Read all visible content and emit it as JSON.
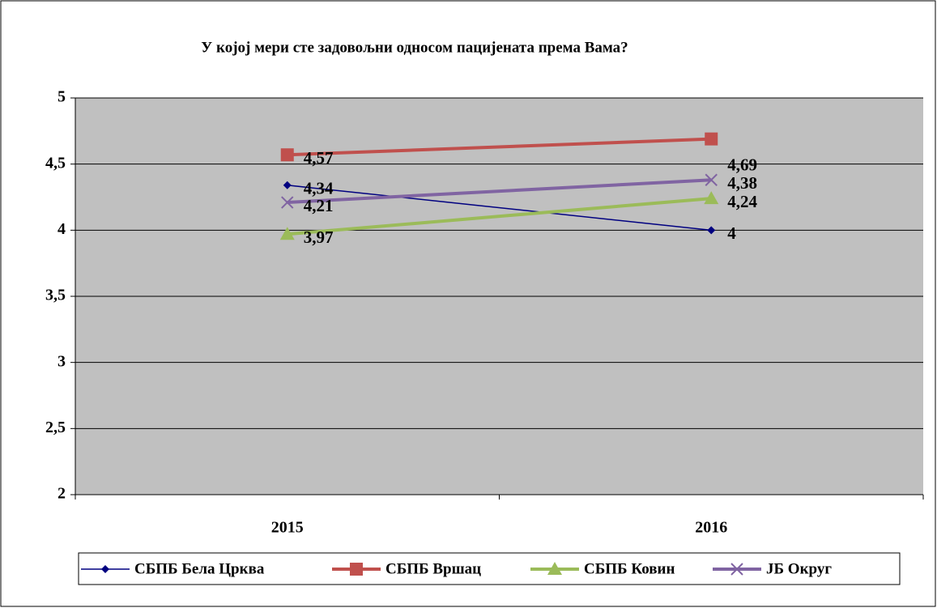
{
  "chart_data": {
    "type": "line",
    "title": "У којој мери сте задовољни односом пацијената према Вама?",
    "categories": [
      "2015",
      "2016"
    ],
    "series": [
      {
        "name": "СБПБ Бела Црква",
        "color": "#000080",
        "values": [
          4.34,
          4
        ],
        "value_labels": [
          "4,34",
          "4"
        ]
      },
      {
        "name": "СБПБ Вршац",
        "color": "#c0504d",
        "values": [
          4.57,
          4.69
        ],
        "value_labels": [
          "4,57",
          "4,69"
        ]
      },
      {
        "name": "СБПБ Ковин",
        "color": "#9bbb59",
        "values": [
          3.97,
          4.24
        ],
        "value_labels": [
          "3,97",
          "4,24"
        ]
      },
      {
        "name": "ЈБ Округ",
        "color": "#8064a2",
        "values": [
          4.21,
          4.38
        ],
        "value_labels": [
          "4,21",
          "4,38"
        ]
      }
    ],
    "ylim": [
      2,
      5
    ],
    "yticks": [
      2,
      {
        "value": 2.5,
        "label": "2,5"
      },
      3,
      {
        "value": 3.5,
        "label": "3,5"
      },
      4,
      {
        "value": 4.5,
        "label": "4,5"
      },
      5
    ],
    "grid": true,
    "legend": "bottom"
  }
}
